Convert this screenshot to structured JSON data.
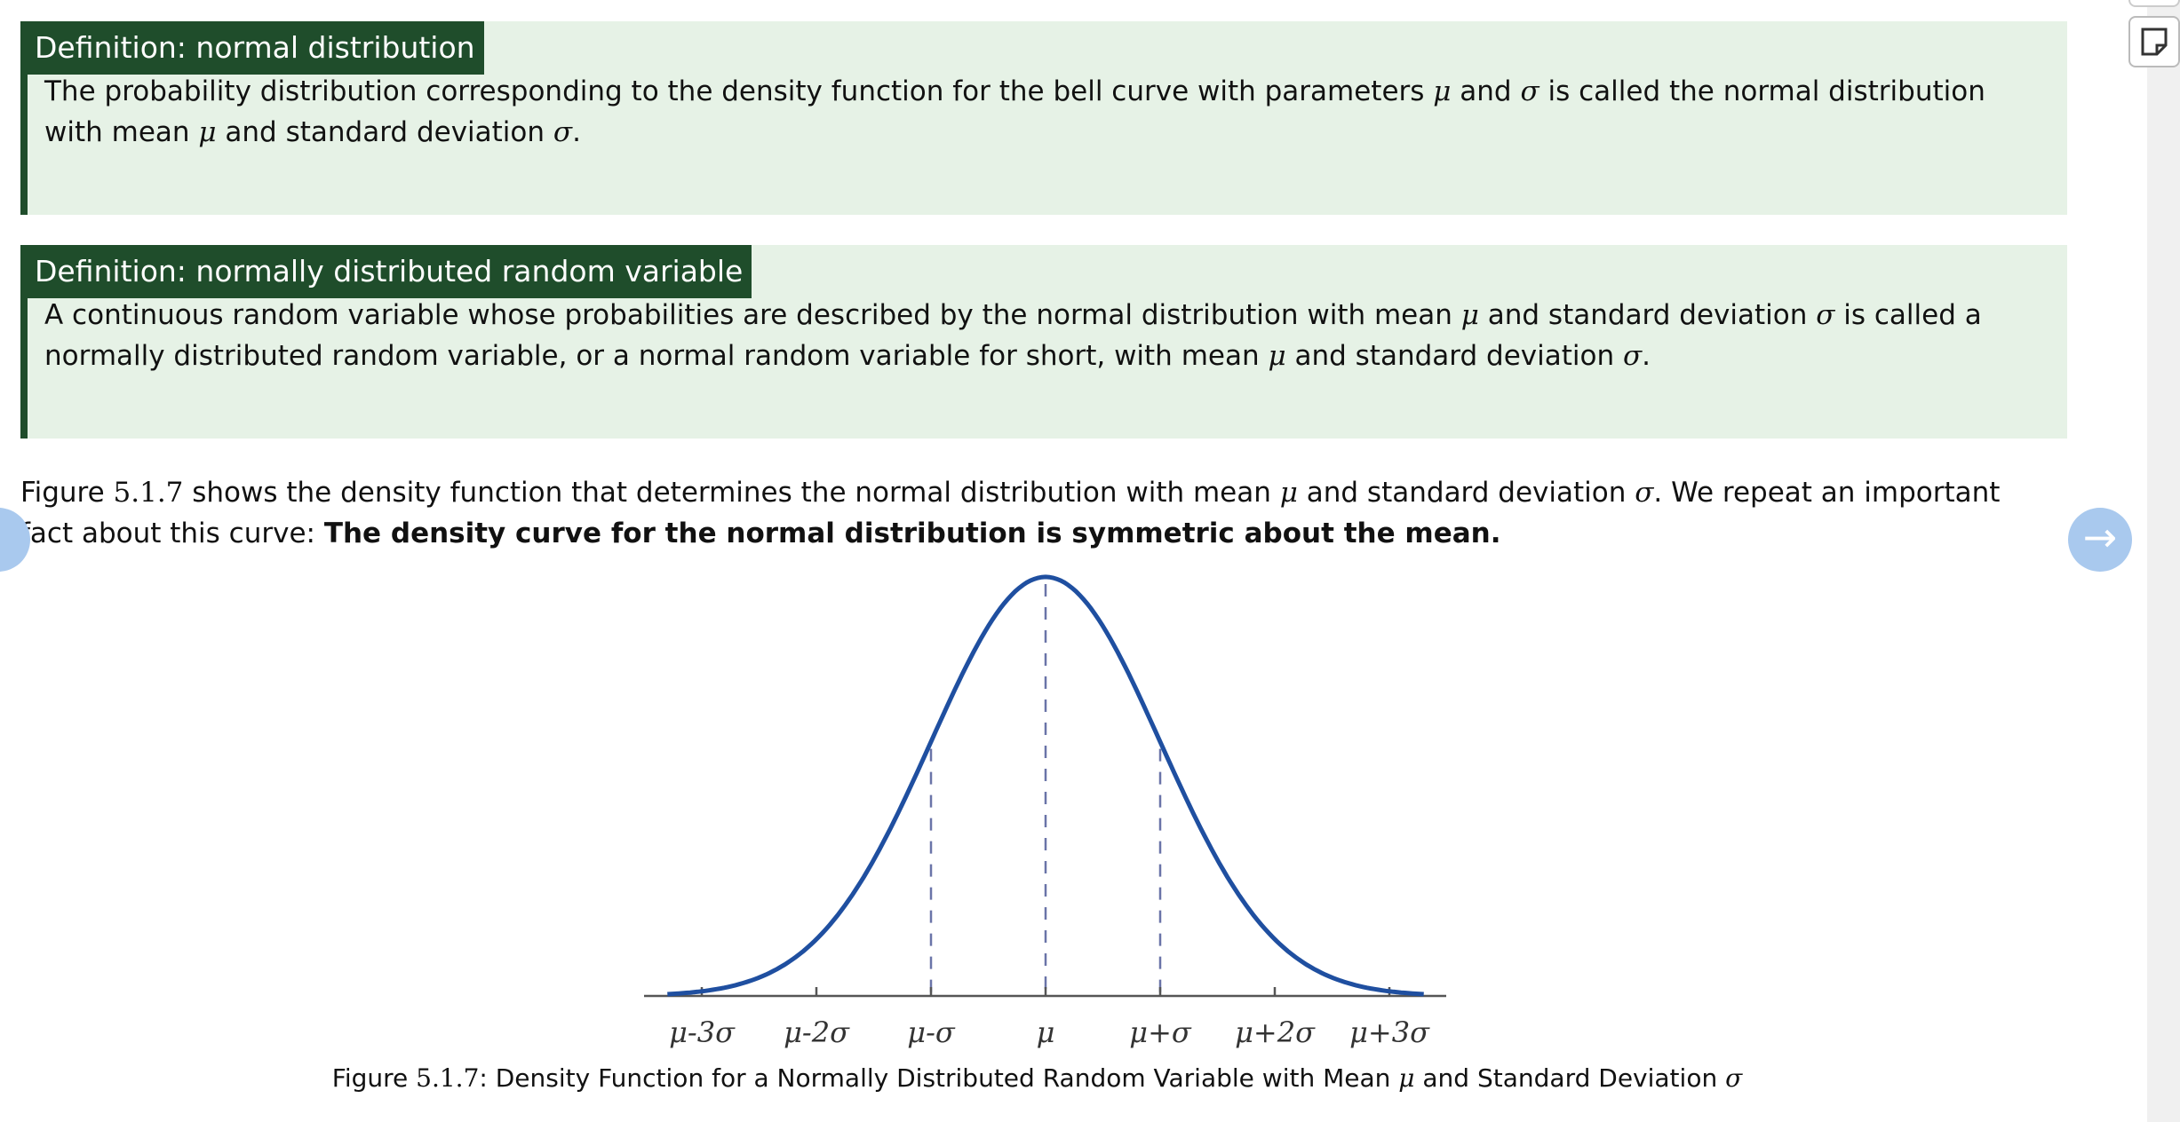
{
  "definitions": [
    {
      "title": "Definition: normal distribution",
      "body_1": "The probability distribution corresponding to the density function for the bell curve with parameters ",
      "mu": "μ",
      "and": " and ",
      "sigma": "σ",
      "body_2": " is called the normal distribution with mean ",
      "body_3": " and standard deviation ",
      "end": "."
    },
    {
      "title": "Definition: normally distributed random variable",
      "body_1": "A continuous random variable whose probabilities are described by the normal distribution with mean ",
      "mu": "μ",
      "body_2": " and standard deviation ",
      "sigma": "σ",
      "body_3": " is called a normally distributed random variable, or a normal random variable for short, with mean ",
      "body_4": " and standard deviation ",
      "end": "."
    }
  ],
  "paragraph": {
    "prefix": "Figure ",
    "fig_num": "5.1.7",
    "text_1": " shows the density function that determines the normal distribution with mean ",
    "mu": "μ",
    "text_2": " and standard deviation ",
    "sigma": "σ",
    "text_3": ". We repeat an important fact about this curve: ",
    "bold": "The density curve for the normal distribution is symmetric about the mean."
  },
  "chart_data": {
    "type": "line",
    "title": "",
    "xlabel": "",
    "ylabel": "",
    "x_ticks": [
      "μ-3σ",
      "μ-2σ",
      "μ-σ",
      "μ",
      "μ+σ",
      "μ+2σ",
      "μ+3σ"
    ],
    "x": [
      -3.3,
      -3,
      -2.5,
      -2,
      -1.5,
      -1,
      -0.5,
      0,
      0.5,
      1,
      1.5,
      2,
      2.5,
      3,
      3.3
    ],
    "y": [
      0.0017,
      0.0044,
      0.0175,
      0.054,
      0.1295,
      0.242,
      0.352,
      0.3989,
      0.352,
      0.242,
      0.1295,
      0.054,
      0.0175,
      0.0044,
      0.0017
    ],
    "dashed_lines_at": [
      -1,
      0,
      1
    ],
    "xlim": [
      -3.5,
      3.5
    ],
    "ylim": [
      0,
      0.4
    ],
    "grid": false,
    "line_color": "#1f4fa0"
  },
  "caption": {
    "prefix": "Figure ",
    "fig_num": "5.1.7",
    "text": ": Density Function for a Normally Distributed Random Variable with Mean ",
    "mu": "μ",
    "text_2": " and Standard Deviation ",
    "sigma": "σ"
  },
  "nav": {
    "next_glyph": "→"
  },
  "colors": {
    "def_header": "#1f4d2b",
    "def_background": "#e6f2e6",
    "nav_button": "#a9c9ee"
  }
}
